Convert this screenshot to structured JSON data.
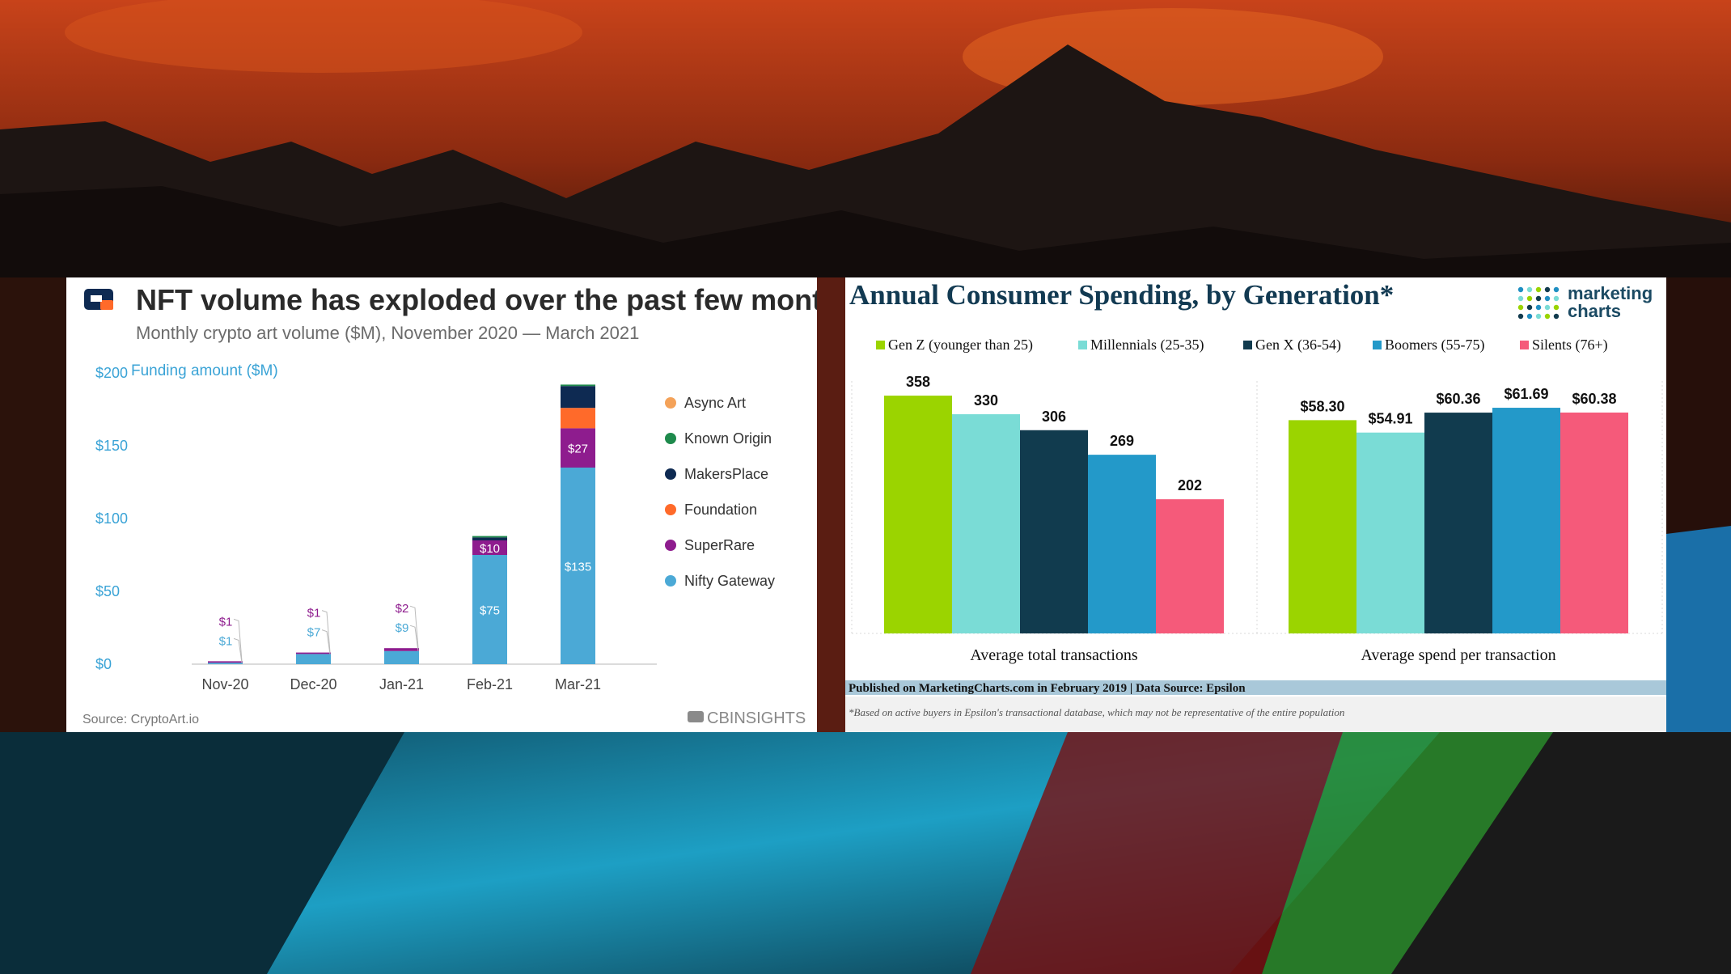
{
  "chart_data": [
    {
      "type": "bar",
      "stacked": true,
      "title": "NFT volume has exploded over the past few months",
      "subtitle": "Monthly crypto art volume ($M), November 2020 — March 2021",
      "ylabel": "Funding amount ($M)",
      "ylim": [
        0,
        200
      ],
      "yticks": [
        "$0",
        "$50",
        "$100",
        "$150",
        "$200"
      ],
      "categories": [
        "Nov-20",
        "Dec-20",
        "Jan-21",
        "Feb-21",
        "Mar-21"
      ],
      "legend_position": "right",
      "series": [
        {
          "name": "Async Art",
          "color": "#f4a259",
          "values": [
            0,
            0,
            0,
            0,
            0
          ],
          "labels": [
            "",
            "",
            "",
            "",
            ""
          ]
        },
        {
          "name": "Known Origin",
          "color": "#1e8a4c",
          "values": [
            0,
            0,
            0,
            1,
            1
          ],
          "labels": [
            "",
            "",
            "",
            "",
            ""
          ]
        },
        {
          "name": "MakersPlace",
          "color": "#0e2a52",
          "values": [
            0,
            0,
            0,
            2,
            15
          ],
          "labels": [
            "",
            "",
            "",
            "",
            ""
          ]
        },
        {
          "name": "Foundation",
          "color": "#ff6a2a",
          "values": [
            0,
            0,
            0,
            0,
            14
          ],
          "labels": [
            "",
            "",
            "",
            "",
            ""
          ]
        },
        {
          "name": "SuperRare",
          "color": "#8e1c8e",
          "values": [
            1,
            1,
            2,
            10,
            27
          ],
          "labels": [
            "$1",
            "$1",
            "$2",
            "$10",
            "$27"
          ]
        },
        {
          "name": "Nifty Gateway",
          "color": "#4ba9d6",
          "values": [
            1,
            7,
            9,
            75,
            135
          ],
          "labels": [
            "$1",
            "$7",
            "$9",
            "$75",
            "$135"
          ]
        }
      ],
      "source": "Source: CryptoArt.io",
      "brand": "CBINSIGHTS"
    },
    {
      "type": "bar",
      "title": "Annual Consumer Spending, by Generation*",
      "categories": [
        "Average total transactions",
        "Average spend per transaction"
      ],
      "legend_position": "top",
      "series": [
        {
          "name": "Gen Z (younger than 25)",
          "color": "#9bd400",
          "values": [
            358,
            58.3
          ],
          "labels": [
            "358",
            "$58.30"
          ]
        },
        {
          "name": "Millennials (25-35)",
          "color": "#7adcd6",
          "values": [
            330,
            54.91
          ],
          "labels": [
            "330",
            "$54.91"
          ]
        },
        {
          "name": "Gen X (36-54)",
          "color": "#113b4e",
          "values": [
            306,
            60.36
          ],
          "labels": [
            "306",
            "$60.36"
          ]
        },
        {
          "name": "Boomers (55-75)",
          "color": "#2399c9",
          "values": [
            269,
            61.69
          ],
          "labels": [
            "269",
            "$61.69"
          ]
        },
        {
          "name": "Silents (76+)",
          "color": "#f55a7a",
          "values": [
            202,
            60.38
          ],
          "labels": [
            "202",
            "$60.38"
          ]
        }
      ],
      "ylim_groups": [
        [
          0,
          380
        ],
        [
          0,
          69
        ]
      ],
      "published": "Published on MarketingCharts.com in February 2019 | Data Source: Epsilon",
      "footnote": "*Based on active buyers in Epsilon's transactional database, which may not be representative of the entire population",
      "brand": [
        "marketing",
        "charts"
      ]
    }
  ]
}
